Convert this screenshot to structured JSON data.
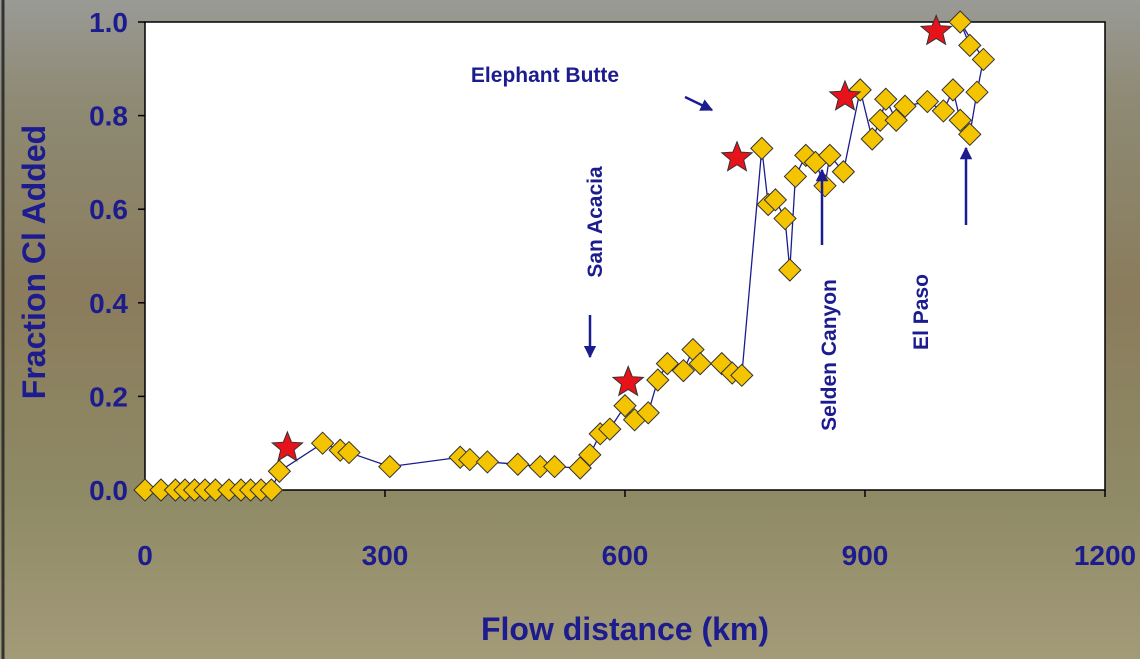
{
  "chart_data": {
    "type": "scatter",
    "x_label": "Flow distance (km)",
    "y_label": "Fraction Cl Added",
    "xlim": [
      0,
      1200
    ],
    "ylim": [
      0,
      1
    ],
    "xticks": [
      0,
      300,
      600,
      900,
      1200
    ],
    "yticks": [
      {
        "value": 0,
        "label": "0.0"
      },
      0.2,
      0.4,
      0.6,
      0.8,
      {
        "value": 1,
        "label": "1.0"
      }
    ],
    "series": [
      {
        "color": "#f5c400",
        "marker": "diamond",
        "line_color": "#1c1c8f",
        "x": [
          0,
          20,
          38,
          50,
          62,
          75,
          88,
          105,
          120,
          132,
          145,
          158,
          168,
          222,
          244,
          255,
          306,
          394,
          406,
          428,
          466,
          494,
          512,
          544,
          556,
          569,
          581,
          600,
          612,
          629,
          641,
          653,
          673,
          685,
          694,
          721,
          734,
          746,
          771,
          779,
          788,
          800,
          806,
          813,
          826,
          838,
          850,
          856,
          873,
          894,
          909,
          919,
          926,
          939,
          950,
          978,
          998,
          1010,
          1019,
          1031,
          1040,
          1048,
          1019,
          1031
        ],
        "values": [
          0,
          0,
          0,
          0,
          0,
          0,
          0,
          0,
          0,
          0,
          0,
          0,
          0.04,
          0.1,
          0.085,
          0.08,
          0.05,
          0.07,
          0.065,
          0.06,
          0.055,
          0.05,
          0.05,
          0.047,
          0.075,
          0.12,
          0.13,
          0.18,
          0.15,
          0.165,
          0.235,
          0.27,
          0.255,
          0.3,
          0.27,
          0.27,
          0.25,
          0.245,
          0.73,
          0.61,
          0.62,
          0.58,
          0.47,
          0.67,
          0.715,
          0.7,
          0.65,
          0.715,
          0.68,
          0.855,
          0.75,
          0.79,
          0.835,
          0.79,
          0.82,
          0.83,
          0.81,
          0.855,
          0.79,
          0.76,
          0.85,
          0.92,
          1.0,
          0.95
        ]
      },
      {
        "color": "#e8121b",
        "marker": "star",
        "x": [
          178,
          604,
          740,
          875,
          989
        ],
        "values": [
          0.09,
          0.23,
          0.71,
          0.84,
          0.98
        ]
      }
    ],
    "annotations": [
      "Elephant Butte",
      "San Acacia",
      "Selden Canyon",
      "El Paso"
    ]
  }
}
